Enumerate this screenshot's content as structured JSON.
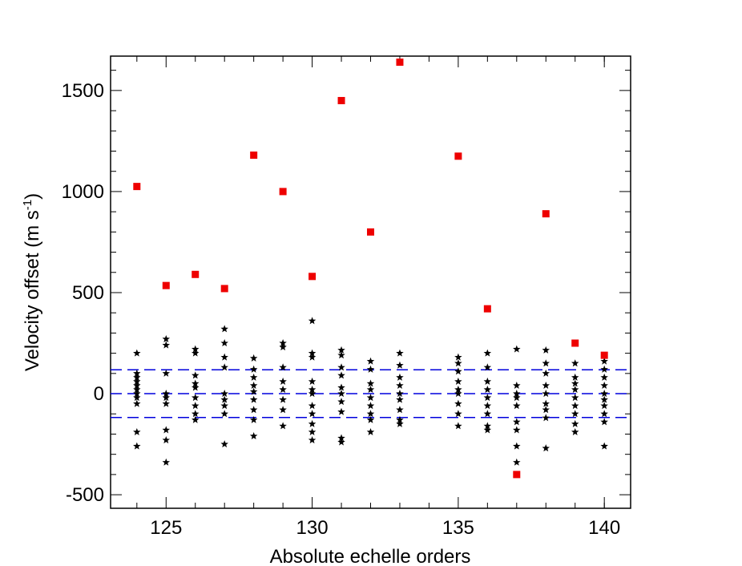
{
  "chart_data": {
    "type": "scatter",
    "xlabel": "Absolute echelle orders",
    "ylabel": {
      "main": "Velocity offset (m s",
      "sup": "-1",
      "end": ")"
    },
    "xlim": [
      123.1,
      140.9
    ],
    "ylim": [
      -567,
      1670
    ],
    "xticks": [
      125,
      130,
      135,
      140
    ],
    "yticks": [
      -500,
      0,
      500,
      1000,
      1500
    ],
    "xticks_minor": [
      124,
      126,
      127,
      128,
      129,
      131,
      132,
      133,
      134,
      136,
      137,
      138,
      139,
      140
    ],
    "yticks_minor": [
      -400,
      -300,
      -200,
      -100,
      100,
      200,
      300,
      400,
      600,
      700,
      800,
      900,
      1100,
      1200,
      1300,
      1400,
      1600
    ],
    "hlines": {
      "color": "#0000dd",
      "values": [
        118,
        0,
        -118
      ]
    },
    "series": [
      {
        "marker": "star",
        "color": "#000000",
        "x": [
          124,
          124,
          124,
          124,
          124,
          124,
          124,
          124,
          124,
          124,
          124,
          125,
          125,
          125,
          125,
          125,
          125,
          125,
          125,
          125,
          126,
          126,
          126,
          126,
          126,
          126,
          126,
          126,
          126,
          127,
          127,
          127,
          127,
          127,
          127,
          127,
          127,
          127,
          128,
          128,
          128,
          128,
          128,
          128,
          128,
          128,
          128,
          129,
          129,
          129,
          129,
          129,
          129,
          129,
          129,
          130,
          130,
          130,
          130,
          130,
          130,
          130,
          130,
          130,
          130,
          130,
          131,
          131,
          131,
          131,
          131,
          131,
          131,
          131,
          131,
          131,
          132,
          132,
          132,
          132,
          132,
          132,
          132,
          132,
          132,
          133,
          133,
          133,
          133,
          133,
          133,
          133,
          133,
          133,
          135,
          135,
          135,
          135,
          135,
          135,
          135,
          135,
          135,
          136,
          136,
          136,
          136,
          136,
          136,
          136,
          136,
          136,
          137,
          137,
          137,
          137,
          137,
          137,
          137,
          137,
          137,
          138,
          138,
          138,
          138,
          138,
          138,
          138,
          138,
          138,
          139,
          139,
          139,
          139,
          139,
          139,
          139,
          139,
          139,
          140,
          140,
          140,
          140,
          140,
          140,
          140,
          140,
          140,
          140
        ],
        "values": [
          200,
          100,
          80,
          60,
          40,
          20,
          0,
          -20,
          -50,
          -190,
          -260,
          270,
          240,
          100,
          0,
          -20,
          -50,
          -180,
          -230,
          -340,
          220,
          200,
          90,
          50,
          30,
          -20,
          -60,
          -100,
          -130,
          320,
          250,
          180,
          130,
          0,
          -30,
          -60,
          -100,
          -250,
          175,
          120,
          80,
          40,
          10,
          -30,
          -80,
          -130,
          -210,
          250,
          230,
          130,
          60,
          20,
          -30,
          -80,
          -160,
          360,
          200,
          180,
          60,
          20,
          0,
          -60,
          -100,
          -150,
          -190,
          -230,
          215,
          190,
          130,
          90,
          30,
          0,
          -40,
          -90,
          -220,
          -240,
          160,
          120,
          50,
          20,
          -20,
          -60,
          -100,
          -130,
          -190,
          200,
          140,
          80,
          40,
          0,
          -30,
          -80,
          -130,
          -150,
          180,
          150,
          110,
          60,
          20,
          0,
          -50,
          -100,
          -160,
          200,
          130,
          60,
          20,
          -20,
          -60,
          -100,
          -160,
          -180,
          220,
          40,
          0,
          -20,
          -60,
          -140,
          -180,
          -260,
          -340,
          215,
          150,
          100,
          40,
          0,
          -50,
          -80,
          -120,
          -270,
          150,
          80,
          50,
          20,
          -20,
          -60,
          -100,
          -150,
          -190,
          160,
          120,
          80,
          40,
          0,
          -30,
          -60,
          -100,
          -140,
          -260
        ]
      },
      {
        "marker": "square",
        "color": "#ee0000",
        "x": [
          124,
          125,
          126,
          127,
          128,
          129,
          130,
          131,
          132,
          133,
          135,
          136,
          137,
          138,
          139,
          140
        ],
        "values": [
          1025,
          535,
          590,
          520,
          1180,
          1000,
          580,
          1450,
          800,
          1640,
          1175,
          420,
          -400,
          890,
          250,
          190
        ]
      }
    ]
  }
}
